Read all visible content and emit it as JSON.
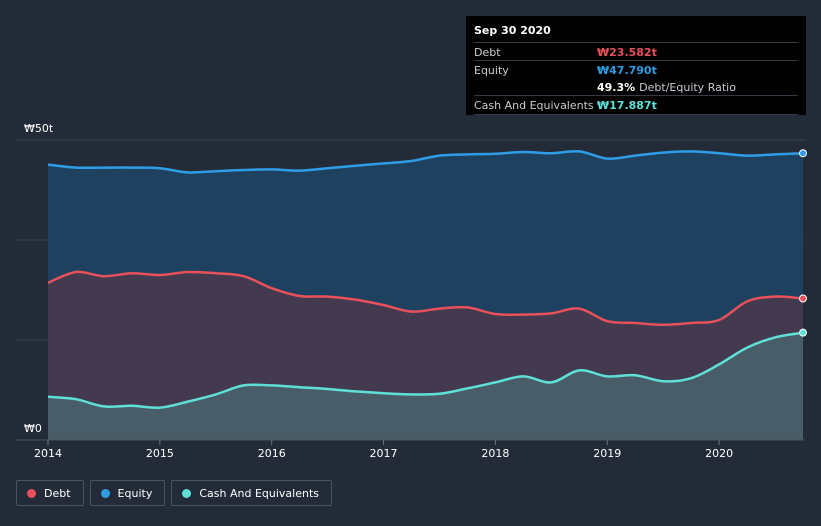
{
  "tooltip": {
    "date": "Sep 30 2020",
    "rows": [
      {
        "label": "Debt",
        "value": "₩23.582t",
        "color": "#e8505b"
      },
      {
        "label": "Equity",
        "value": "₩47.790t",
        "color": "#2f9de6"
      },
      {
        "label": "",
        "value": "49.3%",
        "suffix": "Debt/Equity Ratio"
      },
      {
        "label": "Cash And Equivalents",
        "value": "₩17.887t",
        "color": "#5fe0d6"
      }
    ]
  },
  "legend": [
    {
      "label": "Debt",
      "color": "#e8505b"
    },
    {
      "label": "Equity",
      "color": "#2f9de6"
    },
    {
      "label": "Cash And Equivalents",
      "color": "#5fe0d6"
    }
  ],
  "chart_data": {
    "type": "area",
    "y_tick_labels": [
      "₩50t",
      "₩0"
    ],
    "ylim": [
      0,
      50
    ],
    "xlim": [
      2014.0,
      2020.75
    ],
    "x_tick_labels": [
      "2014",
      "2015",
      "2016",
      "2017",
      "2018",
      "2019",
      "2020"
    ],
    "x": [
      2014.0,
      2014.25,
      2014.5,
      2014.75,
      2015.0,
      2015.25,
      2015.5,
      2015.75,
      2016.0,
      2016.25,
      2016.5,
      2016.75,
      2017.0,
      2017.25,
      2017.5,
      2017.75,
      2018.0,
      2018.25,
      2018.5,
      2018.75,
      2019.0,
      2019.25,
      2019.5,
      2019.75,
      2020.0,
      2020.25,
      2020.5,
      2020.75
    ],
    "series": [
      {
        "name": "Equity",
        "color": "#2f9de6",
        "values": [
          45.9,
          45.4,
          45.4,
          45.4,
          45.3,
          44.6,
          44.8,
          45.0,
          45.1,
          44.9,
          45.3,
          45.7,
          46.1,
          46.5,
          47.4,
          47.6,
          47.7,
          48.0,
          47.8,
          48.1,
          46.9,
          47.4,
          47.9,
          48.1,
          47.8,
          47.4,
          47.6,
          47.79
        ]
      },
      {
        "name": "Debt",
        "color": "#e8505b",
        "values": [
          26.2,
          28.0,
          27.3,
          27.8,
          27.5,
          28.0,
          27.8,
          27.3,
          25.3,
          24.0,
          23.9,
          23.4,
          22.5,
          21.4,
          21.9,
          22.1,
          21.0,
          20.9,
          21.1,
          21.9,
          19.8,
          19.5,
          19.2,
          19.5,
          20.0,
          23.1,
          23.9,
          23.582
        ]
      },
      {
        "name": "Cash And Equivalents",
        "color": "#5fe0d6",
        "values": [
          7.2,
          6.8,
          5.6,
          5.7,
          5.4,
          6.4,
          7.6,
          9.1,
          9.1,
          8.8,
          8.5,
          8.1,
          7.8,
          7.6,
          7.7,
          8.6,
          9.6,
          10.6,
          9.6,
          11.6,
          10.6,
          10.8,
          9.8,
          10.3,
          12.6,
          15.4,
          17.1,
          17.887
        ]
      }
    ]
  }
}
